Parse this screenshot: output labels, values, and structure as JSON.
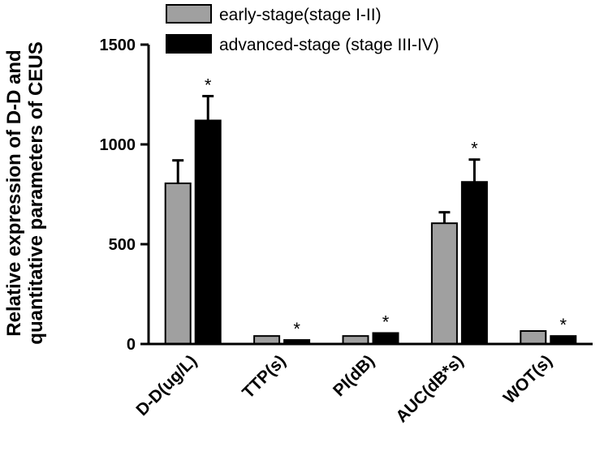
{
  "chart_data": {
    "type": "bar",
    "ylabel": [
      "Relative expression of D-D and",
      "quantitative parameters of CEUS"
    ],
    "ylim": [
      0,
      1500
    ],
    "yticks": [
      "0",
      "500",
      "1000",
      "1500"
    ],
    "categories": [
      "D-D(ug/L)",
      "TTP(s)",
      "PI(dB)",
      "AUC(dB*s)",
      "WOT(s)"
    ],
    "series": [
      {
        "name": "early-stage(stage I-II)",
        "color": "#a0a0a0",
        "values": [
          805,
          40,
          40,
          605,
          65
        ],
        "errors": [
          115,
          0,
          0,
          55,
          0
        ]
      },
      {
        "name": "advanced-stage (stage III-IV)",
        "color": "#000000",
        "values": [
          1120,
          20,
          55,
          812,
          40
        ],
        "errors": [
          122,
          0,
          0,
          112,
          0
        ]
      }
    ],
    "significance": [
      "*",
      "*",
      "*",
      "*",
      "*"
    ],
    "legend_position": "top"
  }
}
